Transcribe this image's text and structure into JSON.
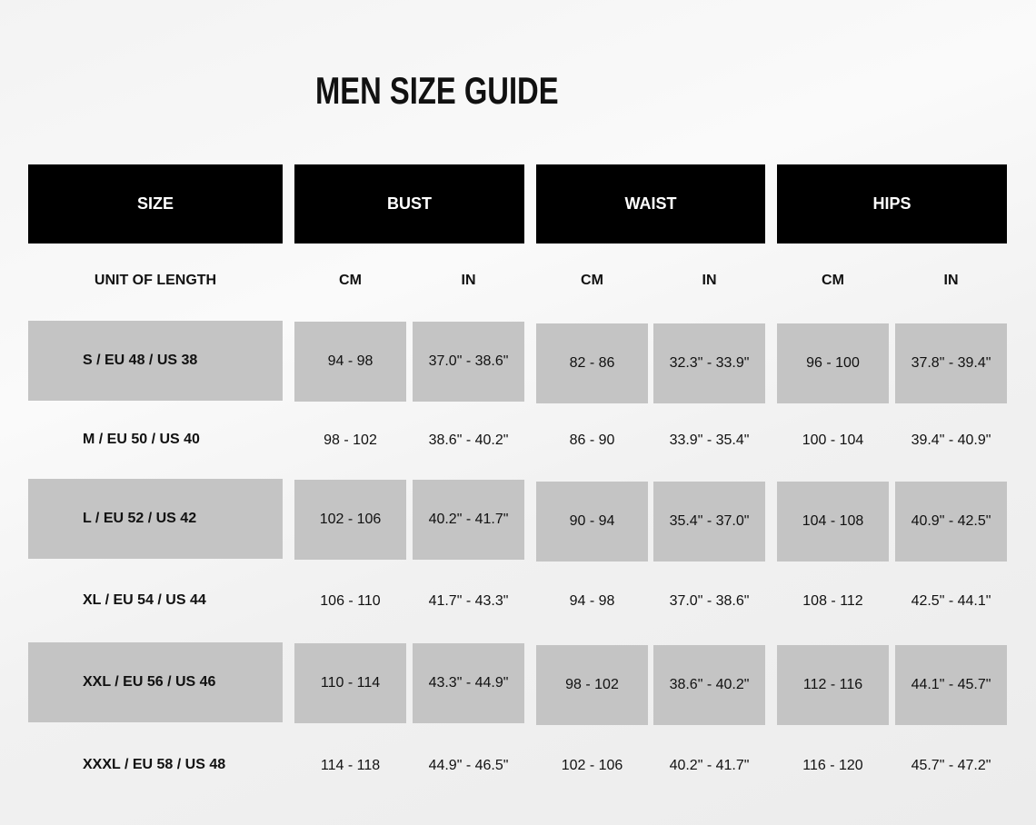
{
  "title": "MEN SIZE GUIDE",
  "headers": [
    "SIZE",
    "BUST",
    "WAIST",
    "HIPS"
  ],
  "units": {
    "label": "UNIT OF LENGTH",
    "cols": [
      "CM",
      "IN",
      "CM",
      "IN",
      "CM",
      "IN"
    ]
  },
  "rows": [
    {
      "size": "S / EU 48  / US 38",
      "values": [
        "94 - 98",
        "37.0\" - 38.6\"",
        "82 - 86",
        "32.3\" - 33.9\"",
        "96 - 100",
        "37.8\" - 39.4\""
      ]
    },
    {
      "size": "M / EU 50 / US 40",
      "values": [
        "98 - 102",
        "38.6\" - 40.2\"",
        "86 - 90",
        "33.9\" - 35.4\"",
        "100 - 104",
        "39.4\" - 40.9\""
      ]
    },
    {
      "size": "L / EU 52 / US 42",
      "values": [
        "102 - 106",
        "40.2\" - 41.7\"",
        "90 - 94",
        "35.4\" - 37.0\"",
        "104 - 108",
        "40.9\" - 42.5\""
      ]
    },
    {
      "size": "XL / EU 54 / US 44",
      "values": [
        "106 - 110",
        "41.7\" - 43.3\"",
        "94 - 98",
        "37.0\" - 38.6\"",
        "108 - 112",
        "42.5\" - 44.1\""
      ]
    },
    {
      "size": "XXL / EU 56 / US 46",
      "values": [
        "110 - 114",
        "43.3\" - 44.9\"",
        "98 - 102",
        "38.6\" - 40.2\"",
        "112 - 116",
        "44.1\" - 45.7\""
      ]
    },
    {
      "size": "XXXL / EU 58 / US 48",
      "values": [
        "114 - 118",
        "44.9\" - 46.5\"",
        "102 - 106",
        "40.2\" - 41.7\"",
        "116 - 120",
        "45.7\" - 47.2\""
      ]
    }
  ],
  "colors": {
    "header_bg": "#000000",
    "header_text": "#ffffff",
    "stripe": "#c4c4c4"
  }
}
